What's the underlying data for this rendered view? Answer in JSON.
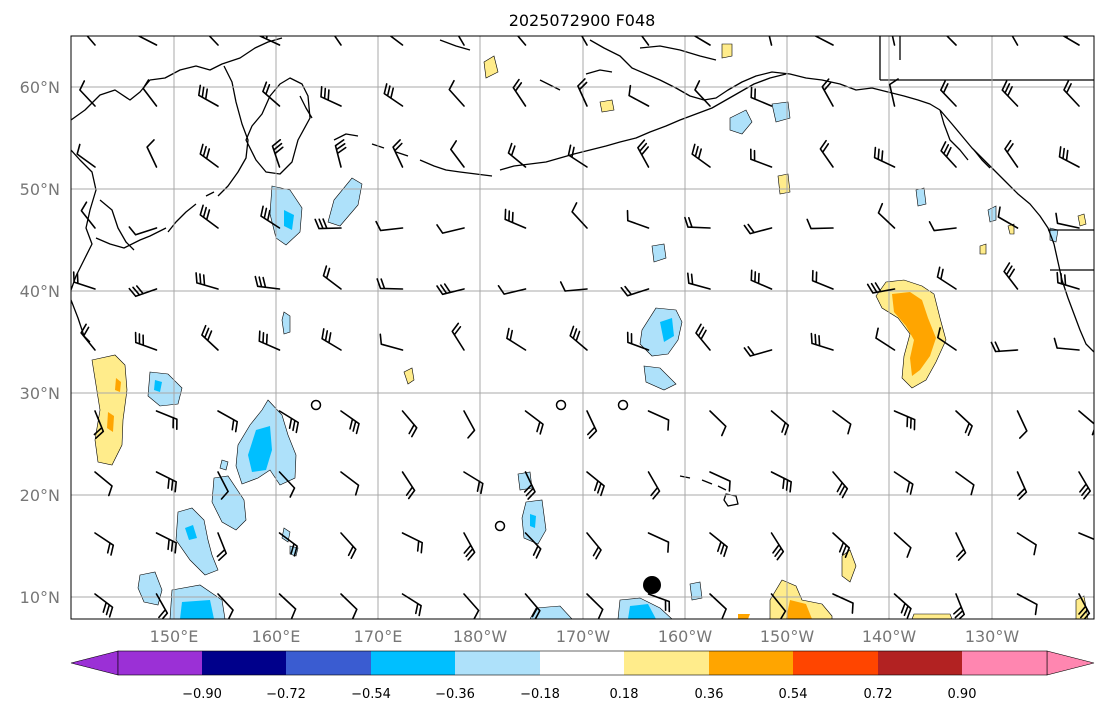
{
  "title": "2025072900 F048",
  "lat_labels": [
    "60°N",
    "50°N",
    "40°N",
    "30°N",
    "20°N",
    "10°N"
  ],
  "lon_labels": [
    "150°E",
    "160°E",
    "170°E",
    "180°W",
    "170°W",
    "160°W",
    "150°W",
    "140°W",
    "130°W"
  ],
  "colorbar": {
    "ticks": [
      "−0.90",
      "−0.72",
      "−0.54",
      "−0.36",
      "−0.18",
      "0.18",
      "0.36",
      "0.54",
      "0.72",
      "0.90"
    ],
    "colors": [
      "#9b30d6",
      "#00008b",
      "#3a5cd1",
      "#00bfff",
      "#aee1fa",
      "#ffffff",
      "#ffec8b",
      "#ffa500",
      "#ff4500",
      "#b22222",
      "#ff86b0"
    ]
  },
  "colors": {
    "light_blue": "#aee1fa",
    "cyan": "#00bfff",
    "light_yellow": "#ffec8b",
    "orange": "#ffa500",
    "grid": "#a8a8a8",
    "label_gray": "#777777"
  }
}
